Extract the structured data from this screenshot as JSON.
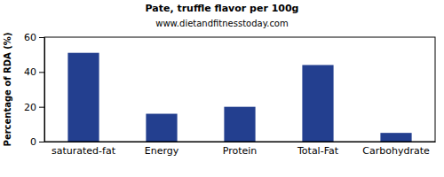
{
  "chart_data": {
    "type": "bar",
    "title": "Pate, truffle flavor per 100g",
    "subtitle": "www.dietandfitnesstoday.com",
    "y_label": "Percentage of RDA (%)",
    "categories": [
      "saturated-fat",
      "Energy",
      "Protein",
      "Total-Fat",
      "Carbohydrate"
    ],
    "values": [
      51,
      16,
      20,
      44,
      5
    ],
    "color": "#233f8f",
    "ylim": [
      0,
      60
    ],
    "yticks": [
      0,
      20,
      40,
      60
    ],
    "grid": false
  }
}
